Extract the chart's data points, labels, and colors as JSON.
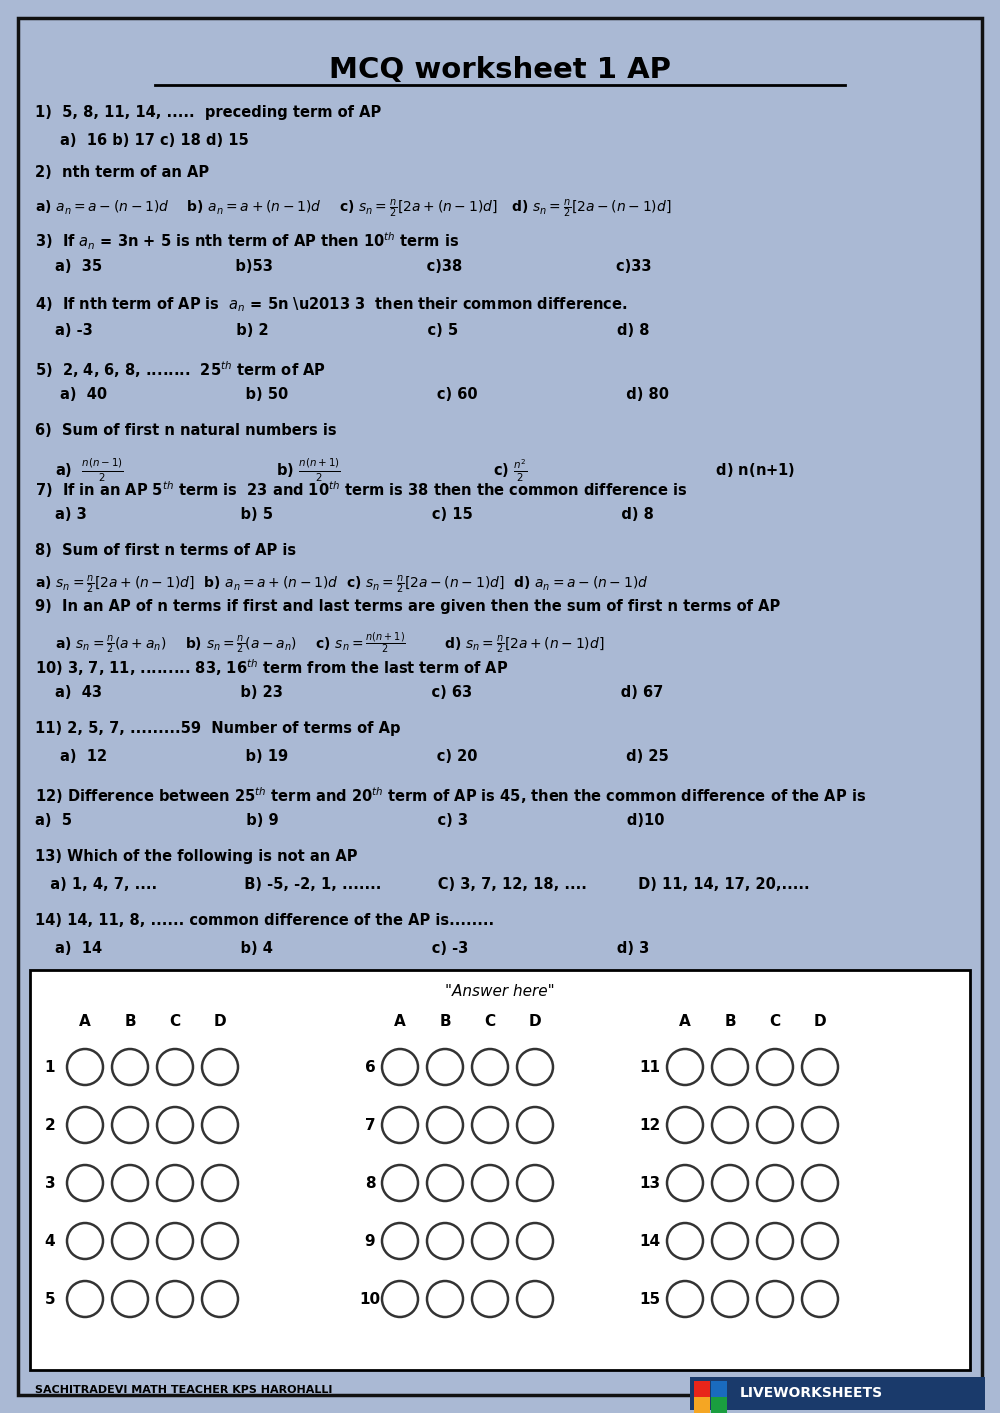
{
  "title": "MCQ worksheet 1 AP",
  "bg_color": "#aab9d4",
  "paper_color": "#aab9d4",
  "border_color": "#111111",
  "title_fontsize": 20,
  "body_fontsize": 10.5,
  "footer_left": "SACHITRADEVI MATH TEACHER KPS HAROHALLI",
  "footer_right": "LIVEWORKSHEETS",
  "answer_box_bg": "white",
  "logo_colors": [
    "#e8251a",
    "#1a6bbf",
    "#f5a623",
    "#1a9e3f"
  ],
  "logo_bg": "#1a3a6b"
}
